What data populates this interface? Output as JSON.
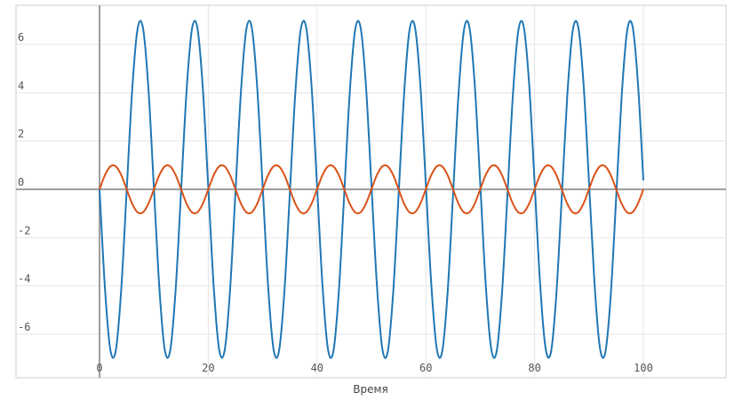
{
  "chart_data": {
    "type": "line",
    "title": "",
    "xlabel": "Время",
    "ylabel": "",
    "xlim": [
      0,
      115
    ],
    "ylim": [
      -7.5,
      7.5
    ],
    "x_ticks": [
      "0",
      "20",
      "40",
      "60",
      "80",
      "100"
    ],
    "y_ticks": [
      "6",
      "4",
      "2",
      "0",
      "-2",
      "-4",
      "-6"
    ],
    "grid": true,
    "legend": "none",
    "series": [
      {
        "color": "#1f77b4",
        "x": [
          0,
          1,
          2,
          3,
          4,
          5,
          6,
          7,
          8,
          9,
          10,
          11,
          12,
          13,
          14,
          15,
          16,
          17,
          18,
          19,
          20,
          21,
          22,
          23,
          24,
          25,
          26,
          27,
          28,
          29,
          30,
          31,
          32,
          33,
          34,
          35,
          36,
          37,
          38,
          39,
          40,
          41,
          42,
          43,
          44,
          45,
          46,
          47,
          48,
          49,
          50,
          51,
          52,
          53,
          54,
          55,
          56,
          57,
          58,
          59,
          60,
          61,
          62,
          63,
          64,
          65,
          66,
          67,
          68,
          69,
          70,
          71,
          72,
          73,
          74,
          75,
          76,
          77,
          78,
          79,
          80,
          81,
          82,
          83,
          84,
          85,
          86,
          87,
          88,
          89,
          90,
          91,
          92,
          93,
          94,
          95,
          96,
          97,
          98,
          99,
          100
        ],
        "y": [
          0,
          -4.1,
          -6.66,
          -6.66,
          -4.12,
          -0.02,
          4.09,
          6.65,
          6.67,
          4.14,
          0.04,
          -4.07,
          -6.65,
          -6.67,
          -4.15,
          -0.06,
          4.06,
          6.64,
          6.68,
          4.17,
          0.07,
          -4.04,
          -6.64,
          -6.68,
          -4.18,
          -0.09,
          4.03,
          6.63,
          6.69,
          4.2,
          0.11,
          -4.01,
          -6.62,
          -6.7,
          -4.21,
          -0.13,
          3.99,
          6.62,
          6.7,
          4.23,
          0.15,
          -3.98,
          -6.61,
          -6.71,
          -4.24,
          -0.17,
          3.96,
          6.6,
          6.71,
          4.26,
          0.18,
          -3.95,
          -6.6,
          -6.72,
          -4.27,
          -0.2,
          3.93,
          6.59,
          6.72,
          4.29,
          0.22,
          -3.92,
          -6.58,
          -6.73,
          -4.3,
          -0.24,
          3.9,
          6.58,
          6.73,
          4.32,
          0.26,
          -3.89,
          -6.57,
          -6.74,
          -4.33,
          -0.27,
          3.87,
          6.56,
          6.74,
          4.35,
          0.29,
          -3.86,
          -6.55,
          -6.75,
          -4.36,
          -0.31,
          3.84,
          6.55,
          6.75,
          4.38,
          0.33,
          -3.83,
          -6.54,
          -6.76,
          -4.39,
          -0.35,
          3.81,
          6.53,
          6.76,
          4.41,
          0.37
        ]
      },
      {
        "color": "#d95319",
        "x": [
          0,
          1,
          2,
          3,
          4,
          5,
          6,
          7,
          8,
          9,
          10,
          11,
          12,
          13,
          14,
          15,
          16,
          17,
          18,
          19,
          20,
          21,
          22,
          23,
          24,
          25,
          26,
          27,
          28,
          29,
          30,
          31,
          32,
          33,
          34,
          35,
          36,
          37,
          38,
          39,
          40,
          41,
          42,
          43,
          44,
          45,
          46,
          47,
          48,
          49,
          50,
          51,
          52,
          53,
          54,
          55,
          56,
          57,
          58,
          59,
          60,
          61,
          62,
          63,
          64,
          65,
          66,
          67,
          68,
          69,
          70,
          71,
          72,
          73,
          74,
          75,
          76,
          77,
          78,
          79,
          80,
          81,
          82,
          83,
          84,
          85,
          86,
          87,
          88,
          89,
          90,
          91,
          92,
          93,
          94,
          95,
          96,
          97,
          98,
          99,
          100
        ],
        "y": [
          0,
          0.59,
          0.95,
          0.95,
          0.59,
          0,
          -0.59,
          -0.95,
          -0.95,
          -0.59,
          0,
          0.59,
          0.95,
          0.95,
          0.59,
          0,
          -0.59,
          -0.95,
          -0.95,
          -0.59,
          0,
          0.59,
          0.95,
          0.95,
          0.59,
          0,
          -0.59,
          -0.95,
          -0.95,
          -0.59,
          0,
          0.59,
          0.95,
          0.95,
          0.59,
          0,
          -0.59,
          -0.95,
          -0.95,
          -0.59,
          0,
          0.59,
          0.95,
          0.95,
          0.59,
          0,
          -0.59,
          -0.95,
          -0.95,
          -0.59,
          0,
          0.59,
          0.95,
          0.95,
          0.59,
          0,
          -0.59,
          -0.95,
          -0.95,
          -0.59,
          0,
          0.59,
          0.95,
          0.95,
          0.59,
          0,
          -0.59,
          -0.95,
          -0.95,
          -0.59,
          0,
          0.59,
          0.95,
          0.95,
          0.59,
          0,
          -0.59,
          -0.95,
          -0.95,
          -0.59,
          0,
          0.59,
          0.95,
          0.95,
          0.59,
          0,
          -0.59,
          -0.95,
          -0.95,
          -0.59,
          0,
          0.59,
          0.95,
          0.95,
          0.59,
          0,
          -0.59,
          -0.95,
          -0.95,
          -0.59,
          0
        ]
      }
    ]
  }
}
